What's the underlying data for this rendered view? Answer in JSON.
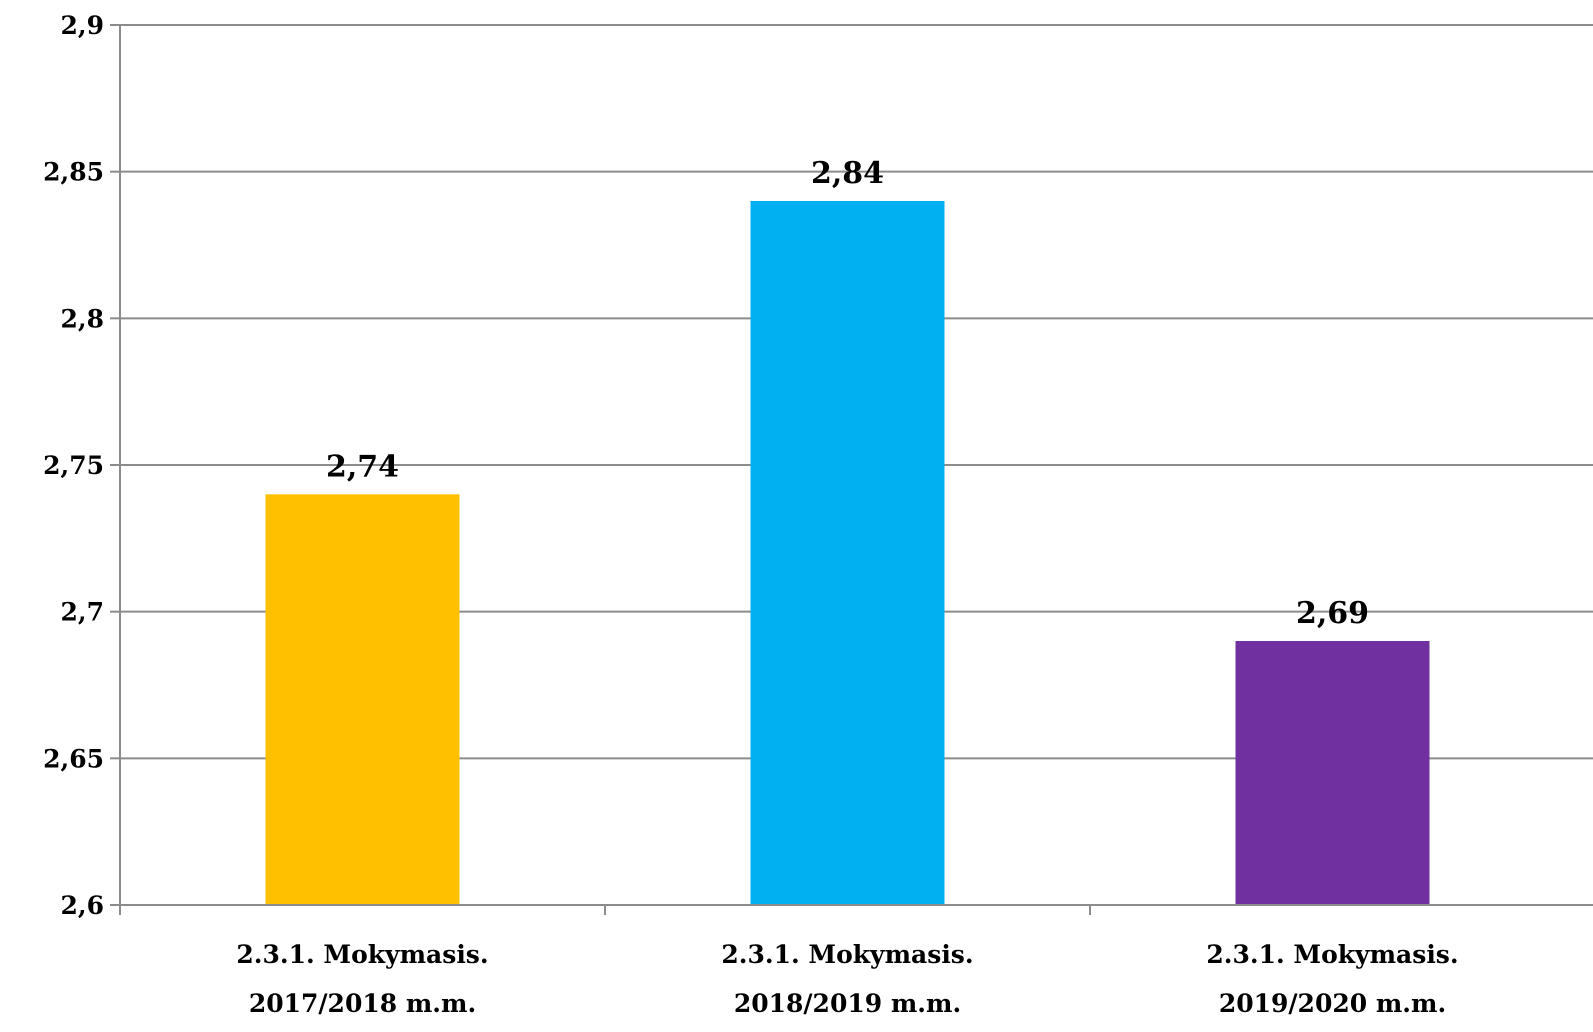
{
  "chart_data": {
    "type": "bar",
    "title": "",
    "xlabel": "",
    "ylabel": "",
    "categories": [
      [
        "2.3.1. Mokymasis.",
        "2017/2018 m.m."
      ],
      [
        "2.3.1. Mokymasis.",
        "2018/2019 m.m."
      ],
      [
        "2.3.1. Mokymasis.",
        "2019/2020 m.m."
      ]
    ],
    "values": [
      2.74,
      2.84,
      2.69
    ],
    "value_labels": [
      "2,74",
      "2,84",
      "2,69"
    ],
    "bar_colors": [
      "#FFC000",
      "#00B0F0",
      "#7030A0"
    ],
    "ylim": [
      2.6,
      2.9
    ],
    "yticks": [
      2.6,
      2.65,
      2.7,
      2.75,
      2.8,
      2.85,
      2.9
    ],
    "ytick_labels": [
      "2,6",
      "2,65",
      "2,7",
      "2,75",
      "2,8",
      "2,85",
      "2,9"
    ],
    "grid": true,
    "legend": "none"
  }
}
